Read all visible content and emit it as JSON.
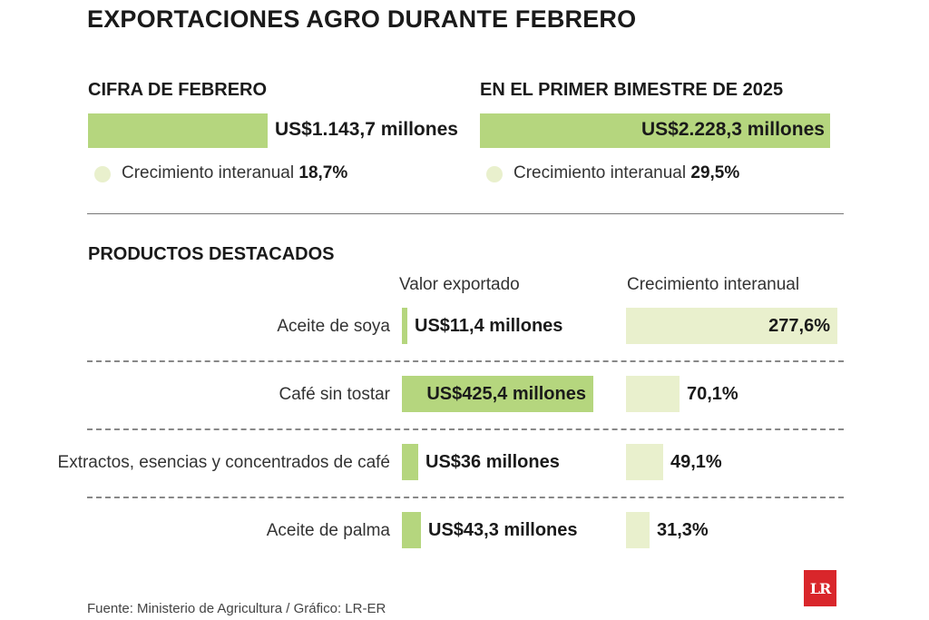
{
  "title": "EXPORTACIONES AGRO DURANTE FEBRERO",
  "colors": {
    "bar_value": "#b5d67e",
    "bar_growth": "#e9f0cd",
    "logo": "#d9262b"
  },
  "february": {
    "heading": "CIFRA DE FEBRERO",
    "value_label": "US$1.143,7 millones",
    "value": 1143.7,
    "growth_label": "Crecimiento interanual",
    "growth_value": "18,7%"
  },
  "bimester": {
    "heading": "EN EL PRIMER BIMESTRE DE 2025",
    "value_label": "US$2.228,3 millones",
    "value": 2228.3,
    "growth_label": "Crecimiento interanual",
    "growth_value": "29,5%"
  },
  "products_heading": "PRODUCTOS DESTACADOS",
  "chart_data": {
    "type": "bar",
    "title": "PRODUCTOS DESTACADOS",
    "categories": [
      "Aceite de soya",
      "Café sin tostar",
      "Extractos, esencias y concentrados de café",
      "Aceite de palma"
    ],
    "series": [
      {
        "name": "Valor exportado",
        "unit": "millones US$",
        "values": [
          11.4,
          425.4,
          36,
          43.3
        ],
        "labels": [
          "US$11,4 millones",
          "US$425,4 millones",
          "US$36 millones",
          "US$43,3 millones"
        ]
      },
      {
        "name": "Crecimiento interanual",
        "unit": "%",
        "values": [
          277.6,
          70.1,
          49.1,
          31.3
        ],
        "labels": [
          "277,6%",
          "70,1%",
          "49,1%",
          "31,3%"
        ]
      }
    ]
  },
  "source": "Fuente: Ministerio de Agricultura / Gráfico: LR-ER",
  "logo_text": "LR"
}
